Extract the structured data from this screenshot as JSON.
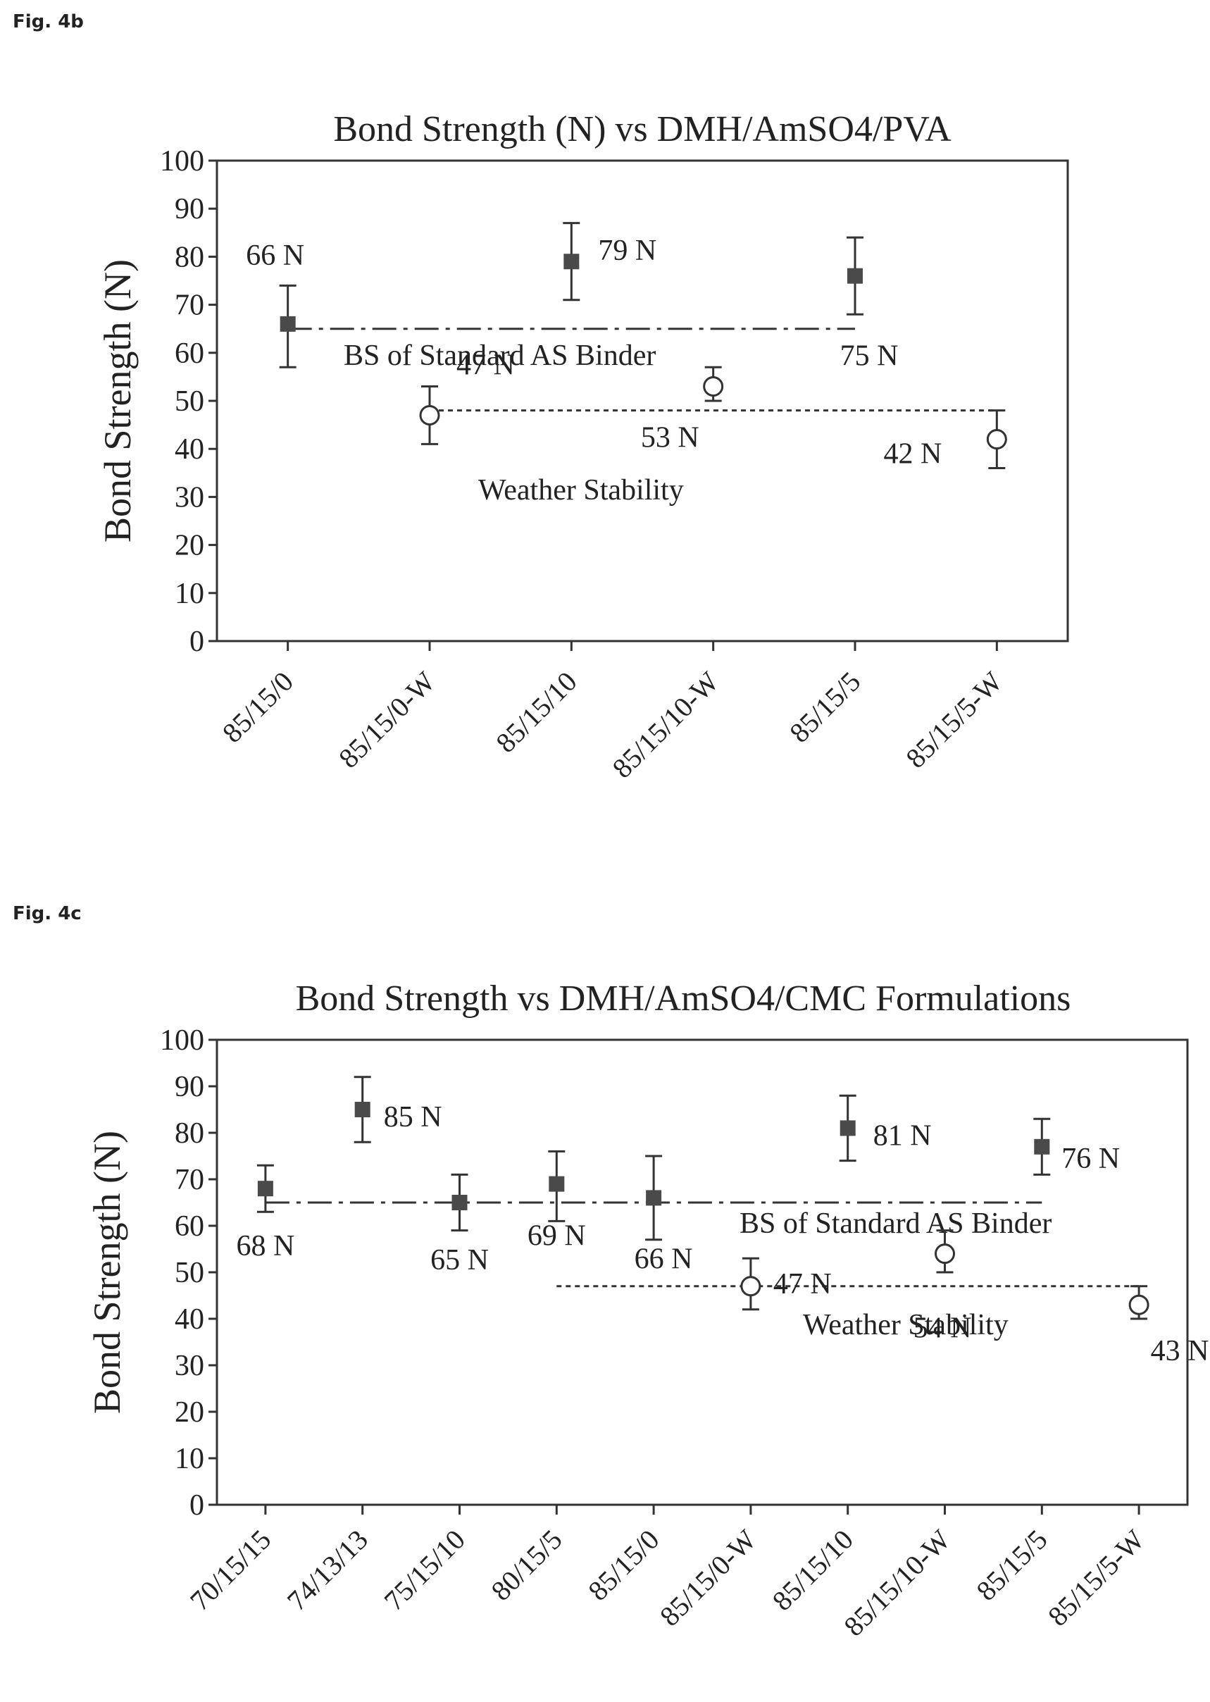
{
  "figures": [
    {
      "label": "Fig. 4b"
    },
    {
      "label": "Fig. 4c"
    }
  ],
  "chart_data": [
    {
      "type": "scatter",
      "title": "Bond Strength (N) vs DMH/AmSO4/PVA",
      "ylabel": "Bond Strength (N)",
      "xlabel": "",
      "ylim": [
        0,
        100
      ],
      "yticks": [
        0,
        10,
        20,
        30,
        40,
        50,
        60,
        70,
        80,
        90,
        100
      ],
      "categories": [
        "85/15/0",
        "85/15/0-W",
        "85/15/10",
        "85/15/10-W",
        "85/15/5",
        "85/15/5-W"
      ],
      "series": [
        {
          "marker": "filled-square",
          "color": "#4a4a4a",
          "points": [
            {
              "x": "85/15/0",
              "y": 66,
              "err_low": 57,
              "err_high": 74,
              "label": "66 N"
            },
            {
              "x": "85/15/10",
              "y": 79,
              "err_low": 71,
              "err_high": 87,
              "label": "79 N"
            },
            {
              "x": "85/15/5",
              "y": 76,
              "err_low": 68,
              "err_high": 84,
              "label": "75 N"
            }
          ]
        },
        {
          "marker": "open-circle",
          "color": "#333333",
          "points": [
            {
              "x": "85/15/0-W",
              "y": 47,
              "err_low": 41,
              "err_high": 53,
              "label": "47 N"
            },
            {
              "x": "85/15/10-W",
              "y": 53,
              "err_low": 50,
              "err_high": 57,
              "label": "53 N"
            },
            {
              "x": "85/15/5-W",
              "y": 42,
              "err_low": 36,
              "err_high": 48,
              "label": "42 N"
            }
          ]
        }
      ],
      "reference_lines": [
        {
          "label": "BS of Standard AS Binder",
          "y": 65,
          "x_from": "85/15/0",
          "x_to": "85/15/5",
          "style": "dash-dot"
        },
        {
          "label": "Weather Stability",
          "y": 48,
          "x_from": "85/15/0-W",
          "x_to": "85/15/5-W",
          "style": "dotted"
        }
      ]
    },
    {
      "type": "scatter",
      "title": "Bond Strength vs DMH/AmSO4/CMC Formulations",
      "ylabel": "Bond Strength (N)",
      "xlabel": "",
      "ylim": [
        0,
        100
      ],
      "yticks": [
        0,
        10,
        20,
        30,
        40,
        50,
        60,
        70,
        80,
        90,
        100
      ],
      "categories": [
        "70/15/15",
        "74/13/13",
        "75/15/10",
        "80/15/5",
        "85/15/0",
        "85/15/0-W",
        "85/15/10",
        "85/15/10-W",
        "85/15/5",
        "85/15/5-W"
      ],
      "series": [
        {
          "marker": "filled-square",
          "color": "#4a4a4a",
          "points": [
            {
              "x": "70/15/15",
              "y": 68,
              "err_low": 63,
              "err_high": 73,
              "label": "68 N"
            },
            {
              "x": "74/13/13",
              "y": 85,
              "err_low": 78,
              "err_high": 92,
              "label": "85 N"
            },
            {
              "x": "75/15/10",
              "y": 65,
              "err_low": 59,
              "err_high": 71,
              "label": "65 N"
            },
            {
              "x": "80/15/5",
              "y": 69,
              "err_low": 61,
              "err_high": 76,
              "label": "69 N"
            },
            {
              "x": "85/15/0",
              "y": 66,
              "err_low": 57,
              "err_high": 75,
              "label": "66 N"
            },
            {
              "x": "85/15/10",
              "y": 81,
              "err_low": 74,
              "err_high": 88,
              "label": "81 N"
            },
            {
              "x": "85/15/5",
              "y": 77,
              "err_low": 71,
              "err_high": 83,
              "label": "76 N"
            }
          ]
        },
        {
          "marker": "open-circle",
          "color": "#333333",
          "points": [
            {
              "x": "85/15/0-W",
              "y": 47,
              "err_low": 42,
              "err_high": 53,
              "label": "47 N"
            },
            {
              "x": "85/15/10-W",
              "y": 54,
              "err_low": 50,
              "err_high": 59,
              "label": "54 N"
            },
            {
              "x": "85/15/5-W",
              "y": 43,
              "err_low": 40,
              "err_high": 47,
              "label": "43 N"
            }
          ]
        }
      ],
      "reference_lines": [
        {
          "label": "BS of Standard AS Binder",
          "y": 65,
          "x_from": "70/15/15",
          "x_to": "85/15/5",
          "style": "dash-dot"
        },
        {
          "label": "Weather Stability",
          "y": 47,
          "x_from": "80/15/5",
          "x_to": "85/15/5-W",
          "style": "dotted"
        }
      ]
    }
  ]
}
